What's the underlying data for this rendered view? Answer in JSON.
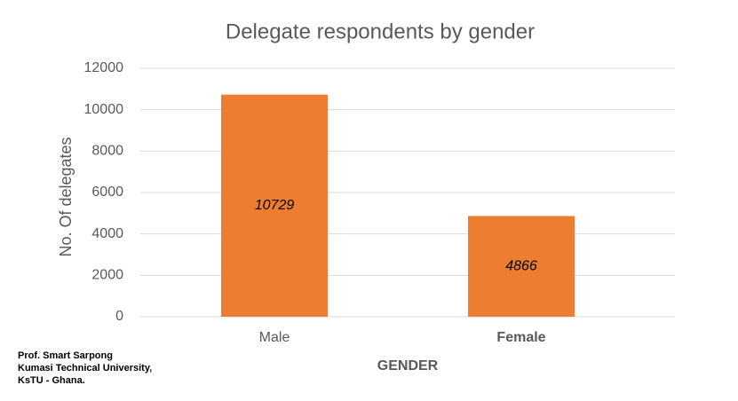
{
  "chart_data": {
    "type": "bar",
    "title": "Delegate respondents by gender",
    "x_label": "GENDER",
    "y_label": "No. Of delegates",
    "categories": [
      "Male",
      "Female"
    ],
    "values": [
      10729,
      4866
    ],
    "color": "#ed7d31",
    "ylim": [
      0,
      12000
    ],
    "yticks": [
      0,
      2000,
      4000,
      6000,
      8000,
      10000,
      12000
    ],
    "grid": true,
    "footnote": [
      "Prof. Smart Sarpong",
      "Kumasi Technical University,",
      "KsTU - Ghana."
    ]
  }
}
